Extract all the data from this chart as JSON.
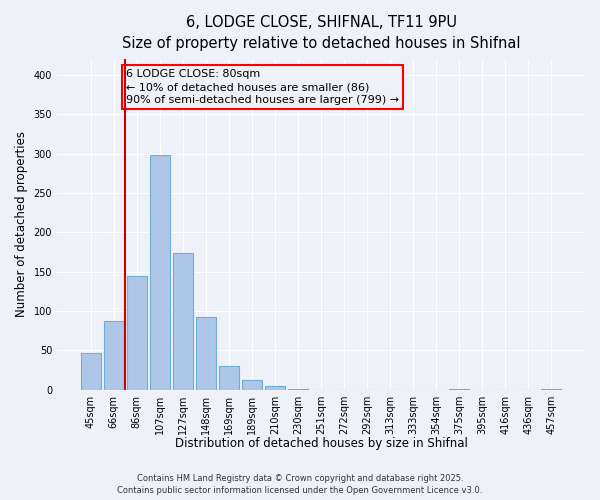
{
  "title": "6, LODGE CLOSE, SHIFNAL, TF11 9PU",
  "subtitle": "Size of property relative to detached houses in Shifnal",
  "xlabel": "Distribution of detached houses by size in Shifnal",
  "ylabel": "Number of detached properties",
  "bar_labels": [
    "45sqm",
    "66sqm",
    "86sqm",
    "107sqm",
    "127sqm",
    "148sqm",
    "169sqm",
    "189sqm",
    "210sqm",
    "230sqm",
    "251sqm",
    "272sqm",
    "292sqm",
    "313sqm",
    "333sqm",
    "354sqm",
    "375sqm",
    "395sqm",
    "416sqm",
    "436sqm",
    "457sqm"
  ],
  "bar_values": [
    47,
    88,
    144,
    298,
    174,
    92,
    30,
    13,
    5,
    1,
    0,
    0,
    0,
    0,
    0,
    0,
    1,
    0,
    0,
    0,
    1
  ],
  "bar_color": "#aec6e8",
  "bar_edge_color": "#6baed6",
  "ylim": [
    0,
    420
  ],
  "yticks": [
    0,
    50,
    100,
    150,
    200,
    250,
    300,
    350,
    400
  ],
  "vline_color": "#cc0000",
  "annotation_title": "6 LODGE CLOSE: 80sqm",
  "annotation_line1": "← 10% of detached houses are smaller (86)",
  "annotation_line2": "90% of semi-detached houses are larger (799) →",
  "footer1": "Contains HM Land Registry data © Crown copyright and database right 2025.",
  "footer2": "Contains public sector information licensed under the Open Government Licence v3.0.",
  "background_color": "#eef2f8",
  "grid_color": "#ffffff",
  "title_fontsize": 10.5,
  "subtitle_fontsize": 9.5,
  "axis_label_fontsize": 8.5,
  "tick_fontsize": 7,
  "annotation_fontsize": 8,
  "footer_fontsize": 6
}
